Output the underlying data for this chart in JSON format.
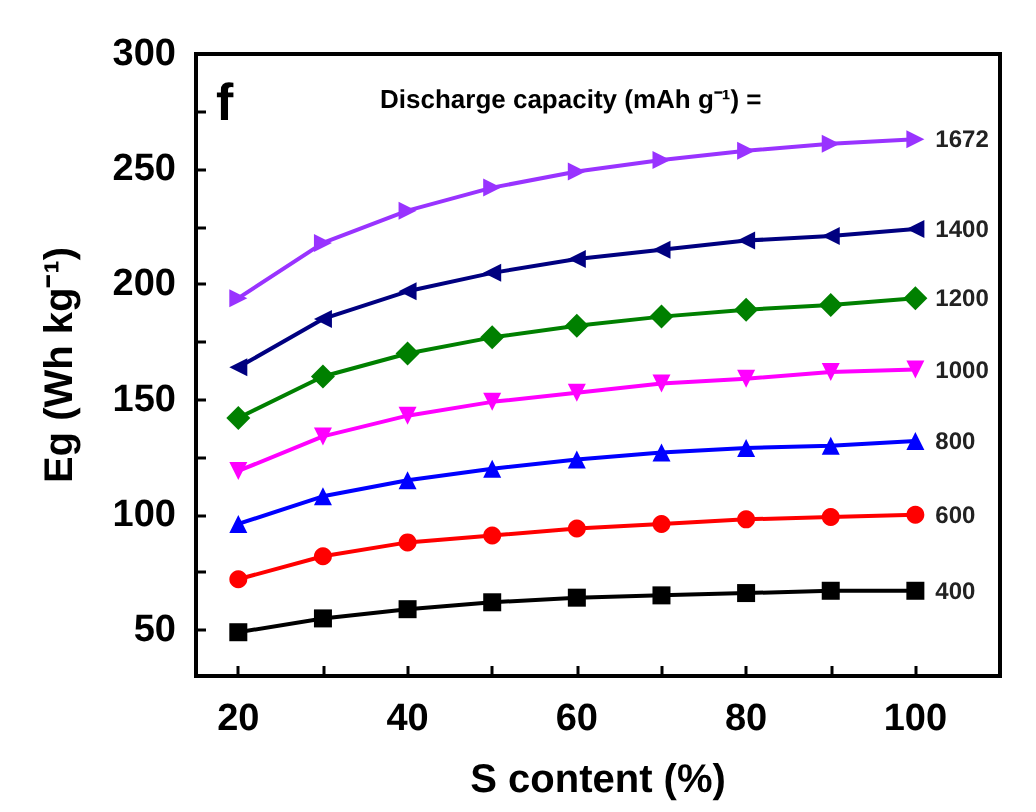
{
  "chart_data": {
    "type": "line",
    "xlabel": "S content (%)",
    "ylabel": "Eg (Wh kg⁻¹)",
    "annotations": [
      "f",
      "Discharge capacity (mAh g⁻¹) ="
    ],
    "x": [
      20,
      30,
      40,
      50,
      60,
      70,
      80,
      90,
      100
    ],
    "xlim": [
      15,
      110
    ],
    "xticks": [
      20,
      {
        "value": 30,
        "label": null
      },
      40,
      {
        "value": 50,
        "label": null
      },
      60,
      {
        "value": 70,
        "label": null
      },
      80,
      {
        "value": 90,
        "label": null
      },
      100
    ],
    "ylim": [
      30,
      300
    ],
    "yticks": [
      50,
      {
        "value": 75,
        "label": null
      },
      100,
      {
        "value": 125,
        "label": null
      },
      150,
      {
        "value": 175,
        "label": null
      },
      200,
      {
        "value": 225,
        "label": null
      },
      250,
      {
        "value": 275,
        "label": null
      },
      300
    ],
    "grid": false,
    "legend": false,
    "line_style": "solid",
    "series": [
      {
        "name": "400",
        "color": "#000000",
        "marker": "square",
        "values": [
          49,
          55,
          59,
          62,
          64,
          65,
          66,
          67,
          67
        ]
      },
      {
        "name": "600",
        "color": "#ff0000",
        "marker": "circle",
        "values": [
          72,
          82,
          88,
          91,
          94,
          96,
          98,
          99,
          100
        ]
      },
      {
        "name": "800",
        "color": "#0000ff",
        "marker": "triangle",
        "values": [
          96,
          108,
          115,
          120,
          124,
          127,
          129,
          130,
          132
        ]
      },
      {
        "name": "1000",
        "color": "#ff00ff",
        "marker": "triangle-down",
        "values": [
          119,
          134,
          143,
          149,
          153,
          157,
          159,
          162,
          163
        ]
      },
      {
        "name": "1200",
        "color": "#008000",
        "marker": "diamond",
        "values": [
          142,
          160,
          170,
          177,
          182,
          186,
          189,
          191,
          194
        ]
      },
      {
        "name": "1400",
        "color": "#000080",
        "marker": "triangle-left",
        "values": [
          164,
          185,
          197,
          205,
          211,
          215,
          219,
          221,
          224
        ]
      },
      {
        "name": "1672",
        "color": "#9933ff",
        "marker": "triangle-right",
        "values": [
          194,
          218,
          232,
          242,
          249,
          254,
          258,
          261,
          263
        ]
      }
    ]
  }
}
